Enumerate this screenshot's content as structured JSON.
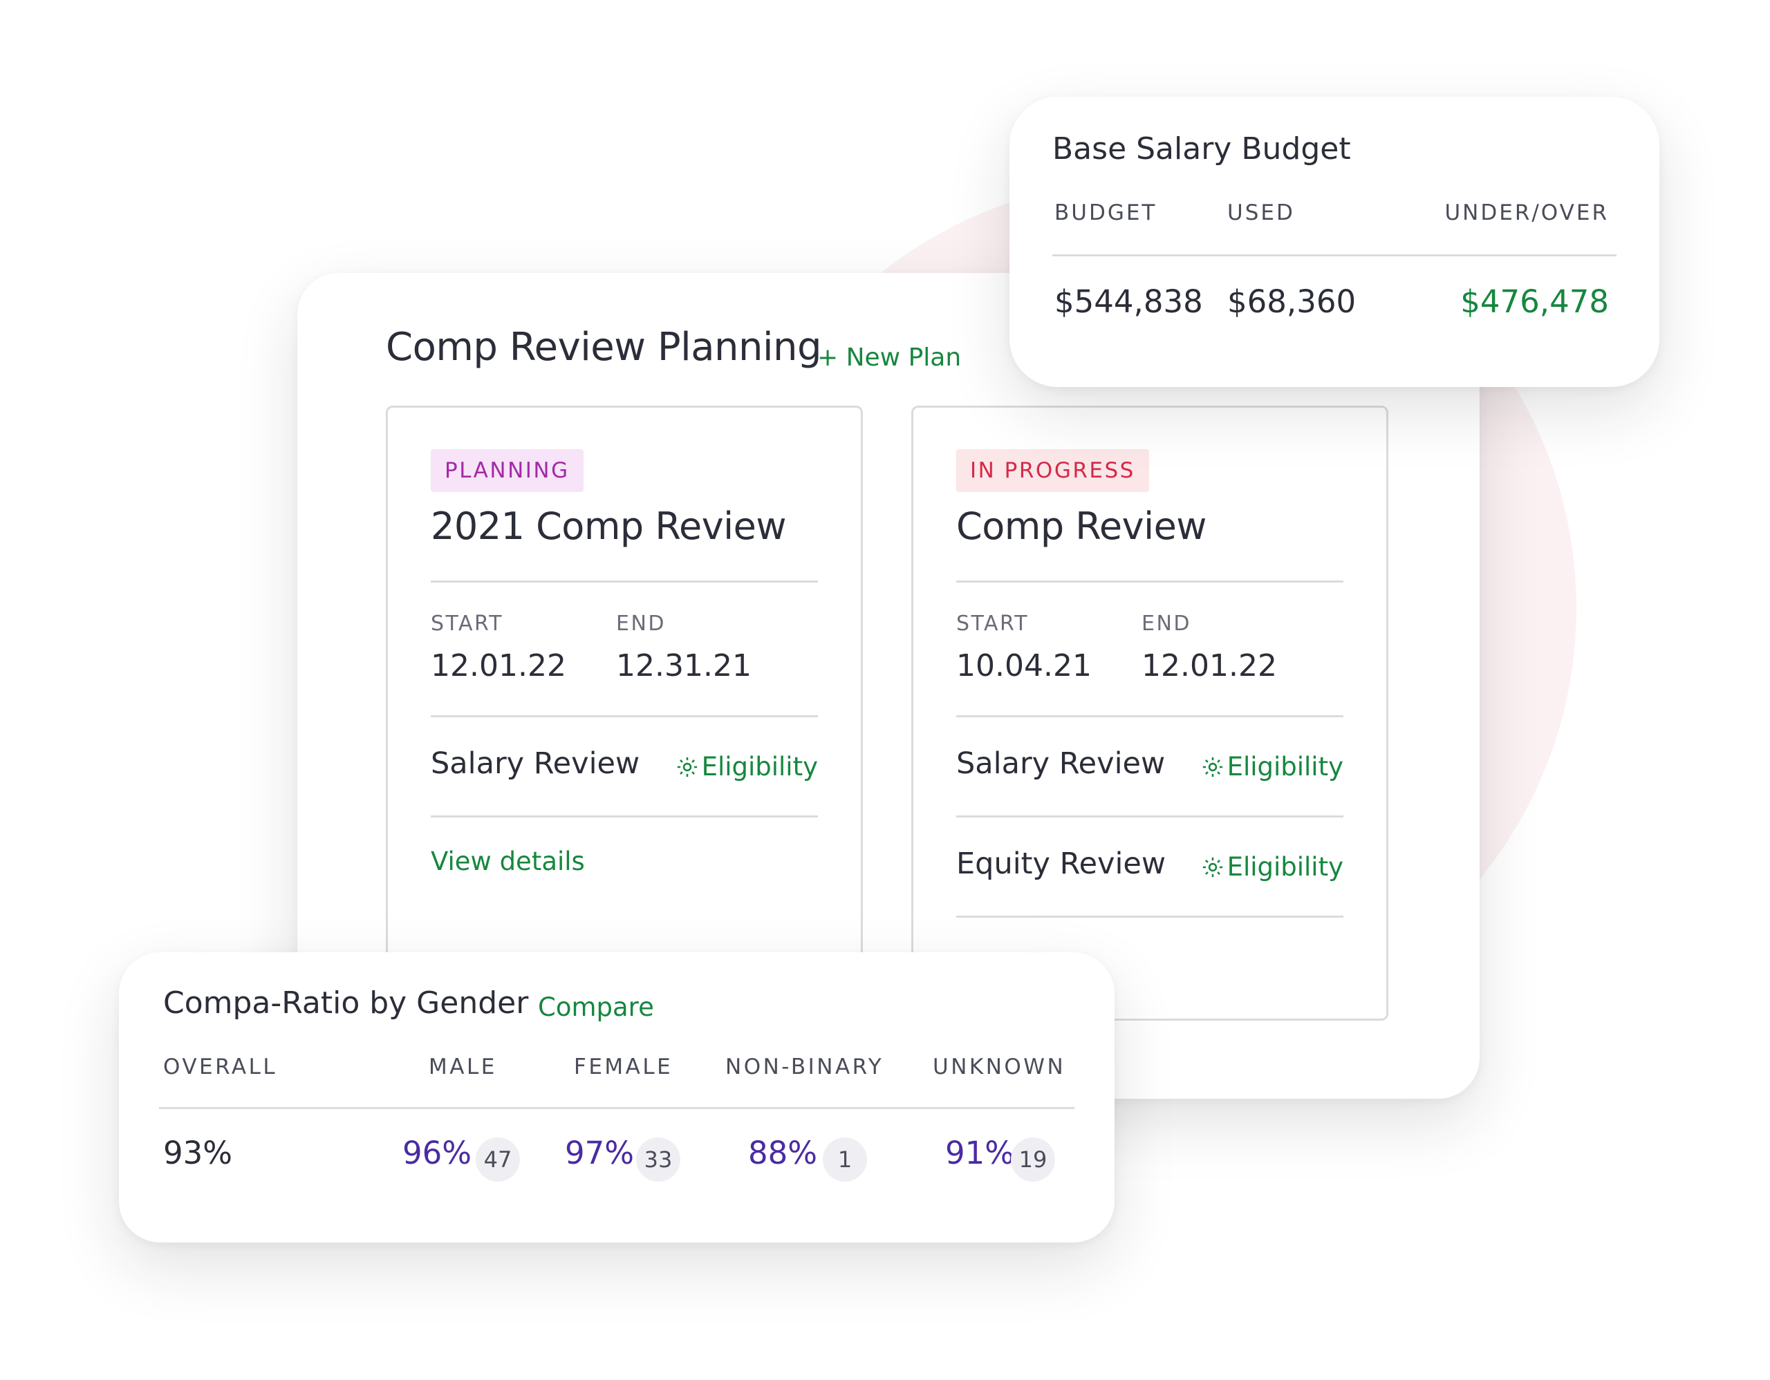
{
  "colors": {
    "accent_green": "#16873f",
    "planning_badge": "#a329a8",
    "in_progress_badge": "#d42a48",
    "ratio_purple": "#4a2ba3"
  },
  "comp_review_planning": {
    "title": "Comp Review Planning",
    "new_plan": "+ New Plan",
    "plans": [
      {
        "status": "PLANNING",
        "title": "2021 Comp Review",
        "start_label": "START",
        "end_label": "END",
        "start": "12.01.22",
        "end": "12.31.21",
        "rows": [
          {
            "label": "Salary Review",
            "action": "Eligibility",
            "icon": "gear-icon"
          }
        ],
        "link": "View details"
      },
      {
        "status": "IN PROGRESS",
        "title": "Comp Review",
        "start_label": "START",
        "end_label": "END",
        "start": "10.04.21",
        "end": "12.01.22",
        "rows": [
          {
            "label": "Salary Review",
            "action": "Eligibility",
            "icon": "gear-icon"
          },
          {
            "label": "Equity Review",
            "action": "Eligibility",
            "icon": "gear-icon"
          }
        ]
      }
    ]
  },
  "base_salary_budget": {
    "title": "Base Salary Budget",
    "columns": [
      "BUDGET",
      "USED",
      "UNDER/OVER"
    ],
    "values": [
      "$544,838",
      "$68,360",
      "$476,478"
    ]
  },
  "compa_ratio": {
    "title": "Compa-Ratio by Gender",
    "compare": "Compare",
    "columns": [
      "OVERALL",
      "MALE",
      "FEMALE",
      "NON-BINARY",
      "UNKNOWN"
    ],
    "overall": "93%",
    "groups": [
      {
        "ratio": "96%",
        "count": "47"
      },
      {
        "ratio": "97%",
        "count": "33"
      },
      {
        "ratio": "88%",
        "count": "1"
      },
      {
        "ratio": "91%",
        "count": "19"
      }
    ]
  }
}
